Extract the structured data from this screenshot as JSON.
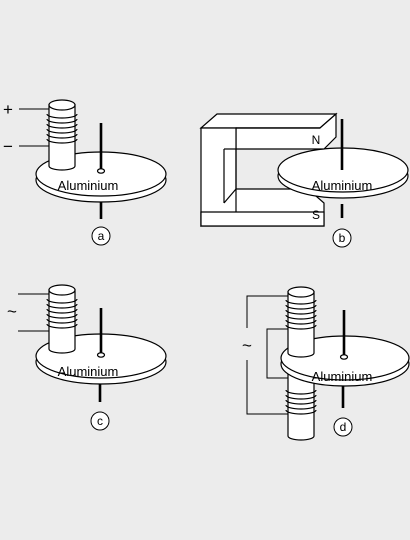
{
  "diagrams": [
    {
      "letter": "a",
      "disk_label": "Aluminium",
      "terminals": [
        "+",
        "−"
      ]
    },
    {
      "letter": "b",
      "disk_label": "Aluminium",
      "poles": [
        "N",
        "S"
      ]
    },
    {
      "letter": "c",
      "disk_label": "Aluminium",
      "supply": "~"
    },
    {
      "letter": "d",
      "disk_label": "Aluminium",
      "supply": "~"
    }
  ],
  "colors": {
    "background": "#ececec",
    "fill": "#ffffff",
    "stroke": "#000000"
  }
}
